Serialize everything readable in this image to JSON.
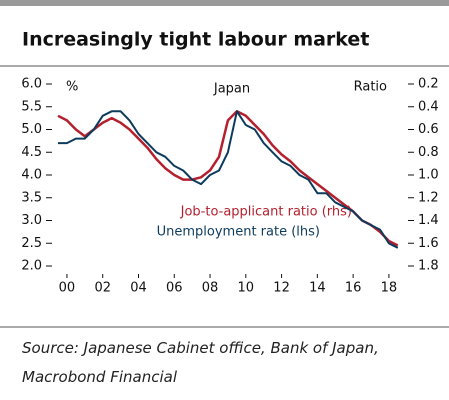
{
  "header": {
    "title": "Increasingly tight labour market"
  },
  "chart_data": {
    "type": "line",
    "title": "Japan",
    "ylabel": "%",
    "y2label": "Ratio",
    "x": [
      1999.5,
      2000,
      2000.5,
      2001,
      2001.5,
      2002,
      2002.5,
      2003,
      2003.5,
      2004,
      2004.5,
      2005,
      2005.5,
      2006,
      2006.5,
      2007,
      2007.5,
      2008,
      2008.5,
      2009,
      2009.5,
      2010,
      2010.5,
      2011,
      2011.5,
      2012,
      2012.5,
      2013,
      2013.5,
      2014,
      2014.5,
      2015,
      2015.5,
      2016,
      2016.5,
      2017,
      2017.5,
      2018,
      2018.5
    ],
    "series": [
      {
        "name": "Unemployment rate (lhs)",
        "color": "#0d3b5e",
        "axis": "y",
        "values": [
          4.7,
          4.7,
          4.8,
          4.8,
          5.0,
          5.3,
          5.4,
          5.4,
          5.2,
          4.9,
          4.7,
          4.5,
          4.4,
          4.2,
          4.1,
          3.9,
          3.8,
          4.0,
          4.1,
          4.5,
          5.4,
          5.1,
          5.0,
          4.7,
          4.5,
          4.3,
          4.2,
          4.0,
          3.9,
          3.6,
          3.6,
          3.4,
          3.3,
          3.2,
          3.0,
          2.9,
          2.8,
          2.5,
          2.4
        ]
      },
      {
        "name": "Job-to-applicant ratio (rhs)",
        "color": "#b5202e",
        "axis": "y2",
        "values": [
          0.48,
          0.52,
          0.6,
          0.66,
          0.6,
          0.54,
          0.5,
          0.54,
          0.6,
          0.68,
          0.76,
          0.86,
          0.94,
          1.0,
          1.04,
          1.04,
          1.02,
          0.96,
          0.84,
          0.52,
          0.44,
          0.48,
          0.56,
          0.64,
          0.74,
          0.82,
          0.88,
          0.96,
          1.02,
          1.08,
          1.14,
          1.2,
          1.26,
          1.32,
          1.4,
          1.44,
          1.5,
          1.58,
          1.62
        ]
      }
    ],
    "xlim": [
      1999.5,
      2018.9
    ],
    "xticks": [
      {
        "value": 2000,
        "label": "00"
      },
      {
        "value": 2002,
        "label": "02"
      },
      {
        "value": 2004,
        "label": "04"
      },
      {
        "value": 2006,
        "label": "06"
      },
      {
        "value": 2008,
        "label": "08"
      },
      {
        "value": 2010,
        "label": "10"
      },
      {
        "value": 2012,
        "label": "12"
      },
      {
        "value": 2014,
        "label": "14"
      },
      {
        "value": 2016,
        "label": "16"
      },
      {
        "value": 2018,
        "label": "18"
      }
    ],
    "ylim": [
      2,
      6
    ],
    "yticks": [
      {
        "value": 6,
        "label": "6.0"
      },
      5.5,
      {
        "value": 5,
        "label": "5.0"
      },
      4.5,
      {
        "value": 4,
        "label": "4.0"
      },
      3.5,
      {
        "value": 3,
        "label": "3.0"
      },
      2.5,
      {
        "value": 2,
        "label": "2.0"
      }
    ],
    "y2lim": [
      1.8,
      0.2
    ],
    "y2ticks": [
      0.2,
      0.4,
      0.6,
      0.8,
      {
        "value": 1,
        "label": "1.0"
      },
      1.2,
      1.4,
      1.6,
      1.8
    ]
  },
  "footer": {
    "source": "Source: Japanese Cabinet office, Bank of Japan, Macrobond Financial"
  }
}
